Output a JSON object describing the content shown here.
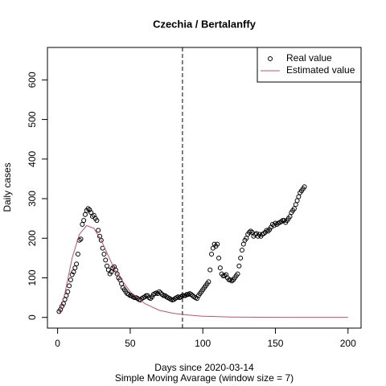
{
  "chart_data": {
    "type": "scatter",
    "title": "Czechia / Bertalanffy",
    "x_label": "Days since 2020-03-14",
    "x_sublabel": "Simple Moving Avarage (window size = 7)",
    "y_label": "Daily cases",
    "xlim": [
      -7,
      209
    ],
    "ylim": [
      -27,
      682
    ],
    "xticks": [
      0,
      50,
      100,
      150,
      200
    ],
    "yticks": [
      0,
      100,
      200,
      300,
      400,
      500,
      600
    ],
    "vline": 86,
    "legend": "top-right",
    "series": [
      {
        "name": "Real value",
        "color": "#000000",
        "kind": "points",
        "x": [
          1,
          2,
          3,
          4,
          5,
          6,
          7,
          8,
          9,
          10,
          11,
          12,
          13,
          14,
          15,
          16,
          17,
          18,
          19,
          20,
          21,
          22,
          23,
          24,
          25,
          26,
          27,
          28,
          29,
          30,
          31,
          32,
          33,
          34,
          35,
          36,
          37,
          38,
          39,
          40,
          41,
          42,
          43,
          44,
          45,
          46,
          47,
          48,
          49,
          50,
          51,
          52,
          53,
          54,
          55,
          56,
          57,
          58,
          59,
          60,
          61,
          62,
          63,
          64,
          65,
          66,
          67,
          68,
          69,
          70,
          71,
          72,
          73,
          74,
          75,
          76,
          77,
          78,
          79,
          80,
          81,
          82,
          83,
          84,
          85,
          86,
          87,
          88,
          89,
          90,
          91,
          92,
          93,
          94,
          95,
          96,
          97,
          98,
          99,
          100,
          101,
          102,
          103,
          104,
          105,
          106,
          107,
          108,
          109,
          110,
          111,
          112,
          113,
          114,
          115,
          116,
          117,
          118,
          119,
          120,
          121,
          122,
          123,
          124,
          125,
          126,
          127,
          128,
          129,
          130,
          131,
          132,
          133,
          134,
          135,
          136,
          137,
          138,
          139,
          140,
          141,
          142,
          143,
          144,
          145,
          146,
          147,
          148,
          149,
          150,
          151,
          152,
          153,
          154,
          155,
          156,
          157,
          158,
          159,
          160,
          161,
          162,
          163,
          164,
          165,
          166,
          167,
          168,
          169,
          170
        ],
        "values": [
          15,
          20,
          28,
          35,
          45,
          55,
          65,
          80,
          95,
          108,
          115,
          125,
          135,
          160,
          195,
          198,
          235,
          245,
          260,
          270,
          275,
          272,
          265,
          255,
          258,
          250,
          245,
          220,
          205,
          195,
          175,
          160,
          145,
          130,
          120,
          110,
          115,
          125,
          128,
          120,
          110,
          100,
          95,
          85,
          75,
          70,
          65,
          60,
          58,
          55,
          55,
          52,
          50,
          50,
          48,
          45,
          44,
          48,
          50,
          52,
          55,
          55,
          50,
          48,
          52,
          58,
          60,
          62,
          60,
          65,
          62,
          58,
          55,
          55,
          52,
          50,
          48,
          46,
          44,
          45,
          48,
          50,
          52,
          50,
          52,
          55,
          55,
          55,
          58,
          58,
          60,
          58,
          55,
          52,
          50,
          48,
          55,
          60,
          65,
          70,
          75,
          80,
          85,
          90,
          120,
          160,
          175,
          185,
          180,
          185,
          150,
          125,
          110,
          105,
          105,
          108,
          100,
          95,
          95,
          92,
          95,
          100,
          105,
          110,
          130,
          150,
          170,
          185,
          195,
          200,
          210,
          215,
          218,
          215,
          205,
          210,
          212,
          205,
          210,
          205,
          210,
          212,
          215,
          220,
          218,
          222,
          228,
          235,
          232,
          238,
          235,
          238,
          240,
          242,
          245,
          245,
          240,
          245,
          250,
          255,
          265,
          270,
          275,
          285,
          295,
          305,
          315,
          320,
          325,
          330
        ]
      },
      {
        "name": "Estimated value",
        "color": "#c8506e",
        "kind": "line",
        "x": [
          1,
          5,
          10,
          15,
          20,
          25,
          30,
          35,
          40,
          50,
          60,
          70,
          80,
          90,
          100,
          110,
          120,
          140,
          160,
          180,
          200
        ],
        "values": [
          8,
          60,
          150,
          210,
          232,
          225,
          195,
          155,
          115,
          65,
          35,
          18,
          10,
          6,
          3,
          2,
          1,
          0.5,
          0.2,
          0.1,
          0.05
        ]
      }
    ]
  }
}
